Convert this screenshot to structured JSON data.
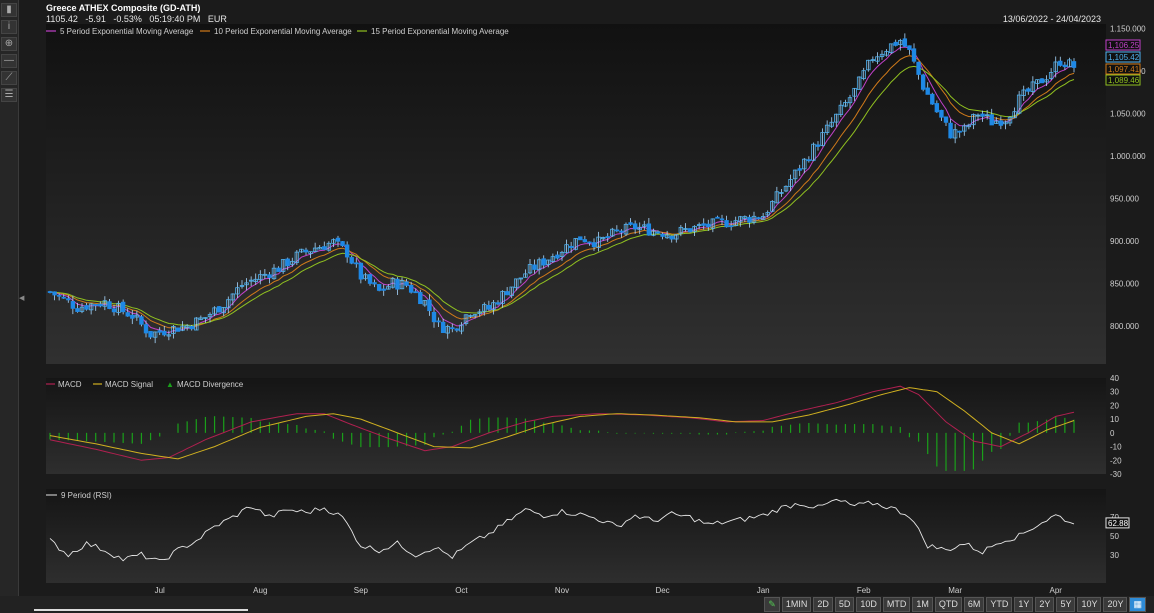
{
  "header": {
    "title": "Greece ATHEX Composite (GD-ATH)",
    "quote": "1105.42   -5.91   -0.53%   05:19:40 PM   EUR",
    "date_range": "13/06/2022 - 24/04/2023"
  },
  "toolbar": {
    "range_buttons": [
      "1MIN",
      "2D",
      "5D",
      "10D",
      "MTD",
      "1M",
      "QTD",
      "6M",
      "YTD",
      "1Y",
      "2Y",
      "5Y",
      "10Y",
      "20Y"
    ],
    "active_icon": "calendar-icon"
  },
  "colors": {
    "up": "#4fb2f0",
    "down": "#1e88e5",
    "ema5": "#c040c8",
    "ema10": "#d07a1a",
    "ema15": "#90c020",
    "macd": "#b02050",
    "signal": "#d0b020",
    "divergence": "#1aa01a",
    "rsi": "#e6e6e6"
  },
  "chart_data": [
    {
      "type": "candlestick",
      "legend": [
        "5 Period Exponential Moving Average",
        "10 Period Exponential Moving Average",
        "15 Period Exponential Moving Average"
      ],
      "x_ticks": [
        "Jul",
        "Aug",
        "Sep",
        "Oct",
        "Nov",
        "Dec",
        "Jan",
        "Feb",
        "Mar",
        "Apr"
      ],
      "y_ticks": [
        1150,
        1100,
        1050,
        1000,
        950,
        900,
        850,
        800
      ],
      "ylim": [
        755,
        1155
      ],
      "last_value_labels": [
        {
          "text": "1,106.25",
          "color": "#c040c8",
          "value": 1106.25
        },
        {
          "text": "1,105.42",
          "color": "#4fb2f0",
          "value": 1105.42
        },
        {
          "text": "1,097.41",
          "color": "#d07a1a",
          "value": 1097.41
        },
        {
          "text": "1,089.46",
          "color": "#90c020",
          "value": 1089.46
        }
      ],
      "keypoints": [
        [
          0,
          840
        ],
        [
          6,
          822
        ],
        [
          12,
          828
        ],
        [
          18,
          812
        ],
        [
          22,
          790
        ],
        [
          26,
          796
        ],
        [
          30,
          800
        ],
        [
          34,
          810
        ],
        [
          38,
          826
        ],
        [
          42,
          848
        ],
        [
          46,
          858
        ],
        [
          50,
          868
        ],
        [
          54,
          882
        ],
        [
          58,
          892
        ],
        [
          62,
          898
        ],
        [
          65,
          886
        ],
        [
          68,
          858
        ],
        [
          72,
          840
        ],
        [
          75,
          850
        ],
        [
          78,
          848
        ],
        [
          82,
          828
        ],
        [
          85,
          800
        ],
        [
          88,
          796
        ],
        [
          92,
          818
        ],
        [
          96,
          820
        ],
        [
          100,
          842
        ],
        [
          104,
          862
        ],
        [
          108,
          876
        ],
        [
          112,
          890
        ],
        [
          116,
          904
        ],
        [
          120,
          898
        ],
        [
          124,
          910
        ],
        [
          128,
          916
        ],
        [
          132,
          912
        ],
        [
          136,
          908
        ],
        [
          140,
          914
        ],
        [
          144,
          918
        ],
        [
          148,
          922
        ],
        [
          152,
          926
        ],
        [
          156,
          930
        ],
        [
          160,
          958
        ],
        [
          164,
          986
        ],
        [
          168,
          1016
        ],
        [
          172,
          1046
        ],
        [
          176,
          1076
        ],
        [
          180,
          1116
        ],
        [
          184,
          1130
        ],
        [
          186,
          1136
        ],
        [
          188,
          1122
        ],
        [
          191,
          1082
        ],
        [
          194,
          1052
        ],
        [
          197,
          1026
        ],
        [
          200,
          1030
        ],
        [
          203,
          1050
        ],
        [
          206,
          1040
        ],
        [
          209,
          1044
        ],
        [
          212,
          1066
        ],
        [
          215,
          1080
        ],
        [
          218,
          1094
        ],
        [
          221,
          1112
        ],
        [
          224,
          1105
        ]
      ],
      "n_candles": 225
    },
    {
      "type": "line",
      "legend": [
        "MACD",
        "MACD Signal",
        "MACD Divergence"
      ],
      "y_ticks": [
        40,
        30,
        20,
        10,
        0,
        -10,
        -20,
        -30
      ],
      "ylim": [
        -30,
        40
      ],
      "macd_keypoints": [
        [
          0,
          -5
        ],
        [
          10,
          -12
        ],
        [
          20,
          -20
        ],
        [
          26,
          -18
        ],
        [
          34,
          -5
        ],
        [
          44,
          8
        ],
        [
          54,
          14
        ],
        [
          60,
          14
        ],
        [
          66,
          6
        ],
        [
          74,
          -4
        ],
        [
          82,
          -13
        ],
        [
          88,
          -10
        ],
        [
          96,
          0
        ],
        [
          104,
          8
        ],
        [
          110,
          12
        ],
        [
          120,
          14
        ],
        [
          130,
          13
        ],
        [
          140,
          11
        ],
        [
          148,
          8
        ],
        [
          156,
          9
        ],
        [
          164,
          16
        ],
        [
          172,
          22
        ],
        [
          180,
          30
        ],
        [
          186,
          34
        ],
        [
          190,
          28
        ],
        [
          196,
          8
        ],
        [
          202,
          -6
        ],
        [
          208,
          -10
        ],
        [
          214,
          0
        ],
        [
          220,
          12
        ],
        [
          224,
          15
        ]
      ],
      "signal_keypoints": [
        [
          0,
          -2
        ],
        [
          10,
          -8
        ],
        [
          20,
          -15
        ],
        [
          28,
          -19
        ],
        [
          36,
          -10
        ],
        [
          46,
          4
        ],
        [
          56,
          12
        ],
        [
          62,
          14
        ],
        [
          68,
          10
        ],
        [
          76,
          0
        ],
        [
          84,
          -10
        ],
        [
          92,
          -11
        ],
        [
          100,
          -3
        ],
        [
          108,
          6
        ],
        [
          116,
          12
        ],
        [
          124,
          14
        ],
        [
          132,
          13
        ],
        [
          142,
          11
        ],
        [
          150,
          8
        ],
        [
          158,
          8
        ],
        [
          166,
          13
        ],
        [
          174,
          20
        ],
        [
          182,
          28
        ],
        [
          188,
          33
        ],
        [
          194,
          30
        ],
        [
          200,
          16
        ],
        [
          206,
          0
        ],
        [
          212,
          -8
        ],
        [
          218,
          2
        ],
        [
          224,
          9
        ]
      ]
    },
    {
      "type": "line",
      "legend": [
        "9 Period (RSI)"
      ],
      "y_ticks": [
        70,
        50,
        30
      ],
      "ylim": [
        0,
        100
      ],
      "last_value_label": "62.88",
      "rsi_keypoints": [
        [
          0,
          45
        ],
        [
          4,
          30
        ],
        [
          8,
          42
        ],
        [
          12,
          35
        ],
        [
          16,
          25
        ],
        [
          20,
          30
        ],
        [
          24,
          22
        ],
        [
          28,
          35
        ],
        [
          32,
          45
        ],
        [
          36,
          60
        ],
        [
          40,
          70
        ],
        [
          44,
          82
        ],
        [
          48,
          70
        ],
        [
          52,
          78
        ],
        [
          56,
          75
        ],
        [
          60,
          80
        ],
        [
          64,
          70
        ],
        [
          68,
          40
        ],
        [
          72,
          35
        ],
        [
          76,
          42
        ],
        [
          80,
          30
        ],
        [
          84,
          38
        ],
        [
          88,
          28
        ],
        [
          92,
          42
        ],
        [
          96,
          52
        ],
        [
          100,
          65
        ],
        [
          104,
          78
        ],
        [
          108,
          72
        ],
        [
          112,
          76
        ],
        [
          116,
          73
        ],
        [
          120,
          68
        ],
        [
          124,
          60
        ],
        [
          128,
          72
        ],
        [
          132,
          66
        ],
        [
          136,
          73
        ],
        [
          140,
          70
        ],
        [
          144,
          62
        ],
        [
          148,
          65
        ],
        [
          152,
          68
        ],
        [
          156,
          72
        ],
        [
          160,
          80
        ],
        [
          164,
          85
        ],
        [
          168,
          80
        ],
        [
          172,
          88
        ],
        [
          176,
          82
        ],
        [
          180,
          85
        ],
        [
          184,
          80
        ],
        [
          188,
          72
        ],
        [
          192,
          40
        ],
        [
          196,
          35
        ],
        [
          200,
          42
        ],
        [
          204,
          33
        ],
        [
          208,
          45
        ],
        [
          212,
          50
        ],
        [
          216,
          62
        ],
        [
          220,
          72
        ],
        [
          222,
          68
        ],
        [
          224,
          62.88
        ]
      ]
    }
  ]
}
